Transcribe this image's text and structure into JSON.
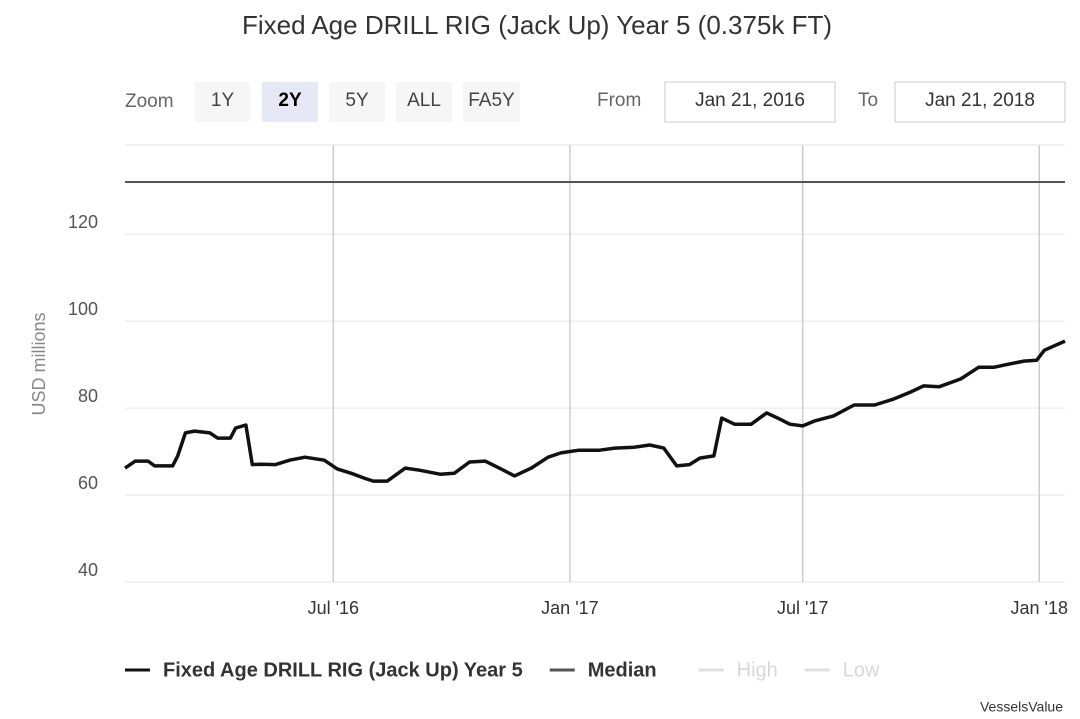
{
  "chart_data": {
    "type": "line",
    "title": "Fixed Age DRILL RIG (Jack Up) Year 5 (0.375k FT)",
    "range_selector": {
      "zoom_label": "Zoom",
      "buttons": [
        "1Y",
        "2Y",
        "5Y",
        "ALL",
        "FA5Y"
      ],
      "selected": "2Y",
      "from_label": "From",
      "from": "Jan 21, 2016",
      "to_label": "To",
      "to": "Jan 21, 2018"
    },
    "y_label": "USD millions",
    "x": [
      "2016-01-21",
      "2016-01-29",
      "2016-02-08",
      "2016-02-13",
      "2016-02-27",
      "2016-03-02",
      "2016-03-08",
      "2016-03-15",
      "2016-03-27",
      "2016-04-02",
      "2016-04-12",
      "2016-04-16",
      "2016-04-24",
      "2016-04-29",
      "2016-05-06",
      "2016-05-17",
      "2016-05-28",
      "2016-06-09",
      "2016-06-24",
      "2016-07-04",
      "2016-07-15",
      "2016-07-25",
      "2016-08-01",
      "2016-08-12",
      "2016-08-26",
      "2016-09-06",
      "2016-09-22",
      "2016-10-03",
      "2016-10-15",
      "2016-10-27",
      "2016-11-07",
      "2016-11-19",
      "2016-12-02",
      "2016-12-15",
      "2016-12-25",
      "2017-01-08",
      "2017-01-24",
      "2017-02-05",
      "2017-02-20",
      "2017-03-04",
      "2017-03-15",
      "2017-03-25",
      "2017-04-04",
      "2017-04-12",
      "2017-04-23",
      "2017-04-29",
      "2017-05-09",
      "2017-05-22",
      "2017-06-03",
      "2017-06-13",
      "2017-06-21",
      "2017-07-01",
      "2017-07-10",
      "2017-07-25",
      "2017-08-10",
      "2017-08-26",
      "2017-09-10",
      "2017-09-23",
      "2017-10-03",
      "2017-10-15",
      "2017-11-01",
      "2017-11-15",
      "2017-11-27",
      "2017-12-08",
      "2017-12-20",
      "2017-12-30",
      "2018-01-05",
      "2018-01-21"
    ],
    "series": [
      {
        "name": "Fixed Age DRILL RIG (Jack Up) Year 5",
        "color": "#111111",
        "values": [
          66.2,
          67.8,
          67.8,
          66.7,
          66.7,
          69,
          74.3,
          74.7,
          74.3,
          73.1,
          73.1,
          75.4,
          76.1,
          67,
          67.1,
          67,
          68,
          68.7,
          68,
          66,
          65,
          63.9,
          63.2,
          63.2,
          66.2,
          65.7,
          64.8,
          65,
          67.6,
          67.8,
          66.2,
          64.4,
          66.2,
          68.7,
          69.7,
          70.3,
          70.3,
          70.8,
          71,
          71.5,
          70.8,
          66.7,
          67,
          68.5,
          69,
          77.7,
          76.3,
          76.3,
          78.9,
          77.5,
          76.3,
          75.9,
          77,
          78.2,
          80.7,
          80.7,
          82.1,
          83.7,
          85.1,
          84.9,
          86.7,
          89.4,
          89.4,
          90.1,
          90.8,
          91,
          93.3,
          95.4
        ]
      }
    ],
    "reference_lines": [
      {
        "name": "Median",
        "value": 132,
        "color": "#555555"
      }
    ],
    "hidden_series": [
      "High",
      "Low"
    ],
    "xlim": [
      "2016-01-21",
      "2018-01-21"
    ],
    "xticks": [
      {
        "value": "2016-07-01",
        "label": "Jul '16"
      },
      {
        "value": "2017-01-01",
        "label": "Jan '17"
      },
      {
        "value": "2017-07-01",
        "label": "Jul '17"
      },
      {
        "value": "2018-01-01",
        "label": "Jan '18"
      }
    ],
    "ylim": [
      40,
      140.5
    ],
    "yticks": [
      40,
      60,
      80,
      100,
      120
    ],
    "grid": true,
    "credit": "VesselsValue"
  }
}
